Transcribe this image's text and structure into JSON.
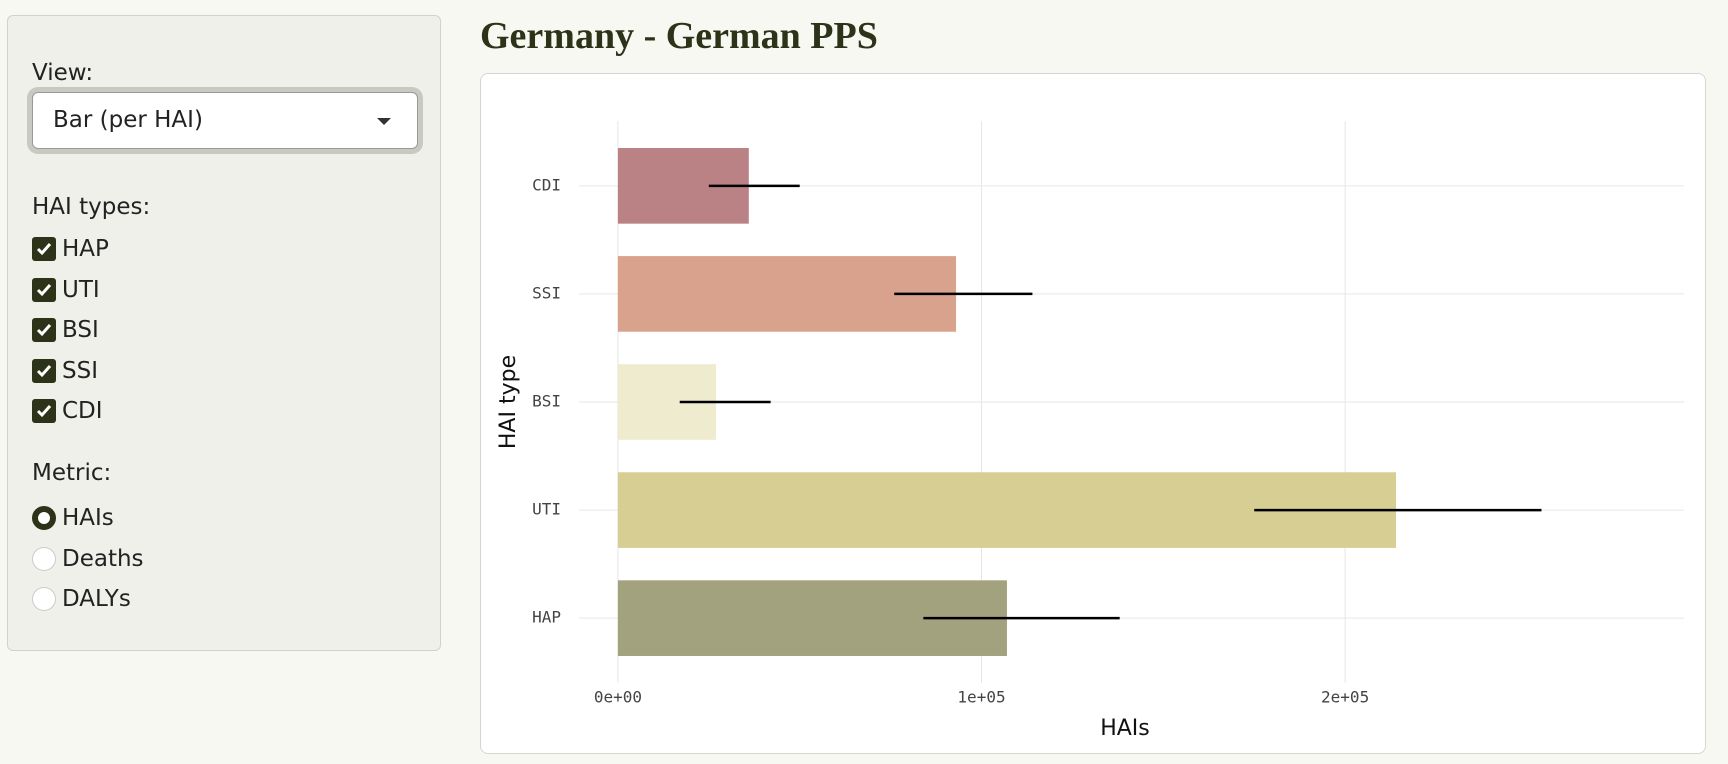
{
  "sidebar": {
    "view_label": "View:",
    "view_value": "Bar (per HAI)",
    "hai_types_label": "HAI types:",
    "hai_types": [
      {
        "label": "HAP",
        "checked": true
      },
      {
        "label": "UTI",
        "checked": true
      },
      {
        "label": "BSI",
        "checked": true
      },
      {
        "label": "SSI",
        "checked": true
      },
      {
        "label": "CDI",
        "checked": true
      }
    ],
    "metric_label": "Metric:",
    "metrics": [
      {
        "label": "HAIs",
        "selected": true
      },
      {
        "label": "Deaths",
        "selected": false
      },
      {
        "label": "DALYs",
        "selected": false
      }
    ]
  },
  "chart_data": {
    "type": "bar",
    "orientation": "horizontal",
    "title": "Germany - German PPS",
    "x_label": "HAIs",
    "y_label": "HAI type",
    "categories": [
      "HAP",
      "UTI",
      "BSI",
      "SSI",
      "CDI"
    ],
    "values": [
      107000,
      214000,
      27000,
      93000,
      36000
    ],
    "lower": [
      84000,
      175000,
      17000,
      76000,
      25000
    ],
    "upper": [
      138000,
      254000,
      42000,
      114000,
      50000
    ],
    "colors": [
      "#a2a27e",
      "#d7ce93",
      "#efebcf",
      "#d9a28d",
      "#bb8285"
    ],
    "error_color": "#000000",
    "xlim": [
      -10700,
      293200
    ],
    "xticks": [
      {
        "value": 0,
        "label": "0e+00"
      },
      {
        "value": 100000,
        "label": "1e+05"
      },
      {
        "value": 200000,
        "label": "2e+05"
      }
    ],
    "grid": true
  }
}
